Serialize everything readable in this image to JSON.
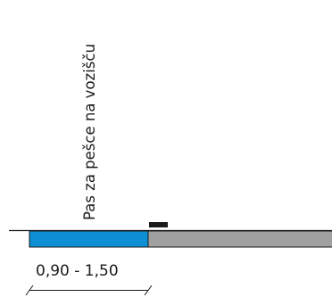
{
  "diagram": {
    "lane_label": "Pas za pešce na vozišču",
    "dimension_label": "0,90 - 1,50",
    "colors": {
      "pedestrian_lane": "#0d8fd6",
      "roadway": "#a0a0a0",
      "outline": "#1a1a1a",
      "curb_marker": "#1a1a1a",
      "background": "#ffffff"
    }
  }
}
